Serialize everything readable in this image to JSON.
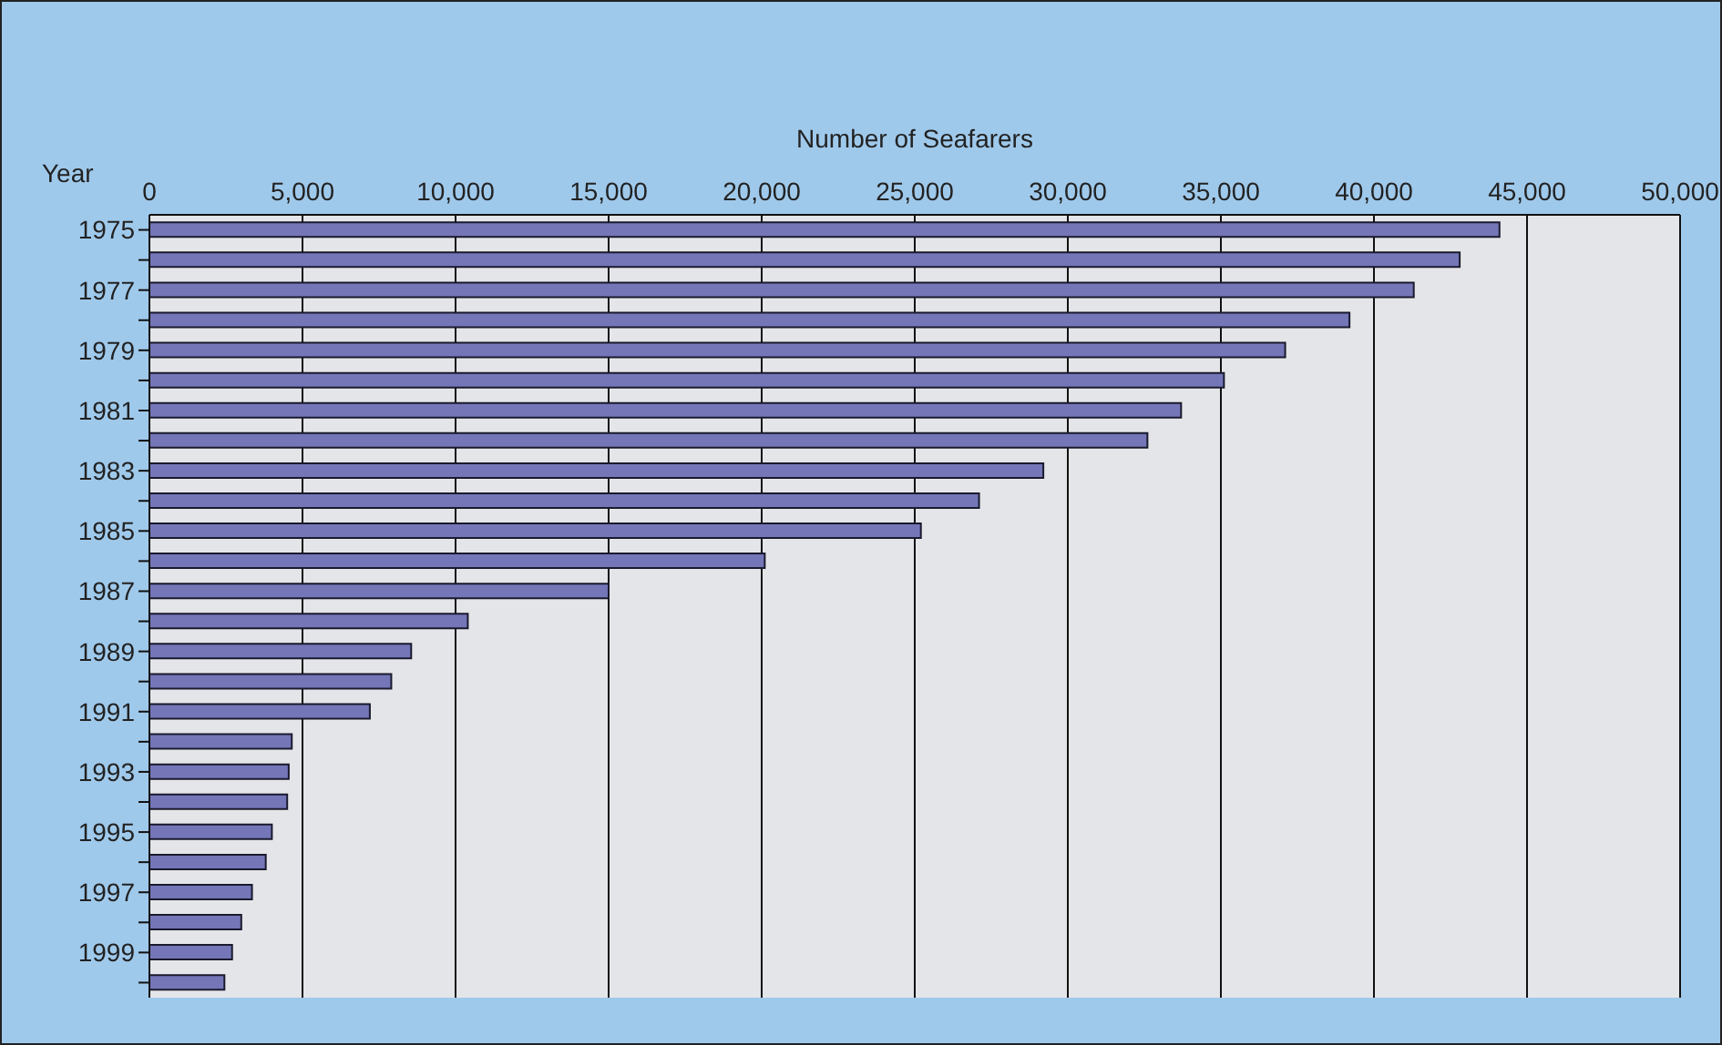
{
  "chart_data": {
    "type": "bar",
    "orientation": "horizontal",
    "xlabel": "Number of  Seafarers",
    "ylabel": "Year",
    "categories": [
      "1975",
      null,
      "1977",
      null,
      "1979",
      null,
      "1981",
      null,
      "1983",
      null,
      "1985",
      null,
      "1987",
      null,
      "1989",
      null,
      "1991",
      null,
      "1993",
      null,
      "1995",
      null,
      "1997",
      null,
      "1999",
      null
    ],
    "values": [
      44100,
      42800,
      41300,
      39200,
      37100,
      35100,
      33700,
      32600,
      29200,
      27100,
      25200,
      20100,
      15000,
      10400,
      8550,
      7900,
      7200,
      4650,
      4550,
      4500,
      4000,
      3800,
      3350,
      3000,
      2700,
      2450
    ],
    "color": "#7476b8",
    "xlim": [
      0,
      50000
    ],
    "xticks": [
      {
        "value": 0,
        "label": "0"
      },
      {
        "value": 5000,
        "label": "5,000"
      },
      {
        "value": 10000,
        "label": "10,000"
      },
      {
        "value": 15000,
        "label": "15,000"
      },
      {
        "value": 20000,
        "label": "20,000"
      },
      {
        "value": 25000,
        "label": "25,000"
      },
      {
        "value": 30000,
        "label": "30,000"
      },
      {
        "value": 35000,
        "label": "35,000"
      },
      {
        "value": 40000,
        "label": "40,000"
      },
      {
        "value": 45000,
        "label": "45,000"
      },
      {
        "value": 50000,
        "label": "50,000"
      }
    ],
    "grid": "x",
    "legend": false
  }
}
